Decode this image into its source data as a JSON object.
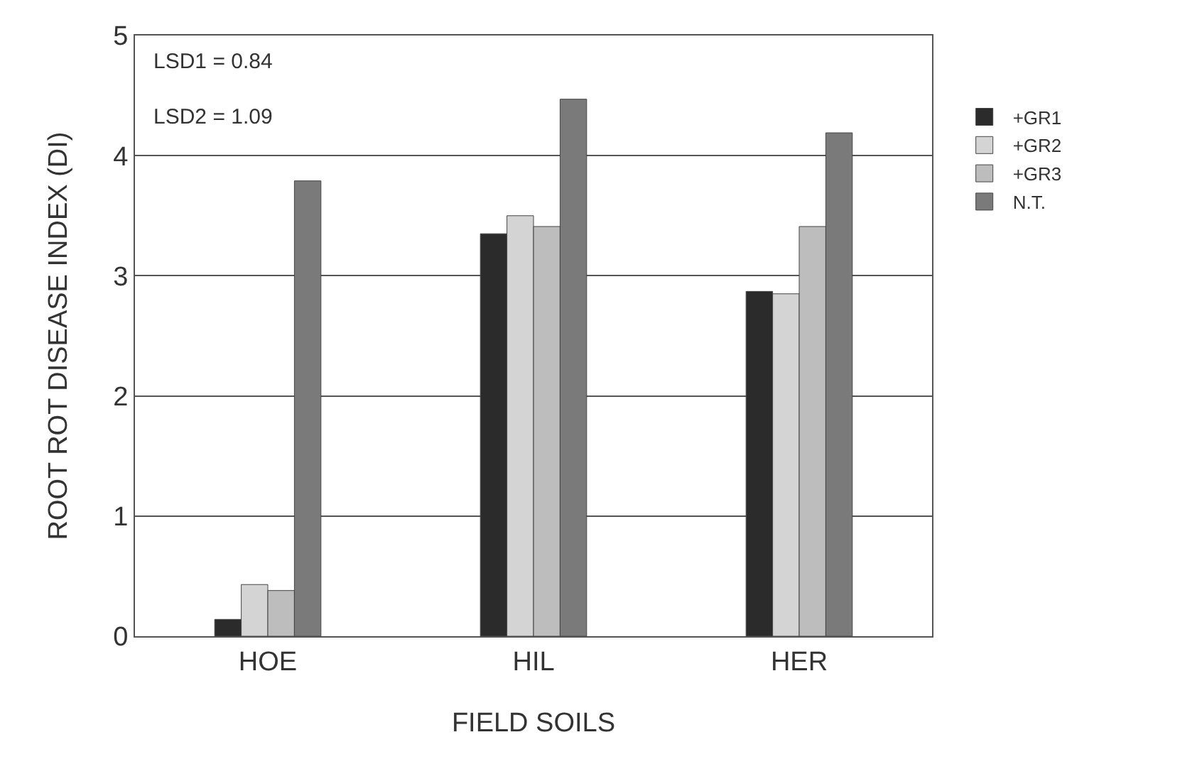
{
  "chart_data": {
    "type": "bar",
    "xlabel": "FIELD SOILS",
    "ylabel": "ROOT ROT DISEASE INDEX (DI)",
    "categories": [
      "HOE",
      "HIL",
      "HER"
    ],
    "series": [
      {
        "name": "+GR1",
        "color": "#2b2b2b",
        "values": [
          0.14,
          3.35,
          2.87
        ]
      },
      {
        "name": "+GR2",
        "color": "#d4d4d4",
        "values": [
          0.43,
          3.5,
          2.85
        ]
      },
      {
        "name": "+GR3",
        "color": "#bdbdbd",
        "values": [
          0.38,
          3.41,
          3.41
        ]
      },
      {
        "name": "N.T.",
        "color": "#7a7a7a",
        "values": [
          3.79,
          4.47,
          4.19
        ]
      }
    ],
    "ylim": [
      0,
      5
    ],
    "yticks": [
      0,
      1,
      2,
      3,
      4,
      5
    ],
    "grid": "y",
    "legend": "right",
    "annotations": [
      "LSD1 = 0.84",
      "LSD2 = 1.09"
    ]
  }
}
